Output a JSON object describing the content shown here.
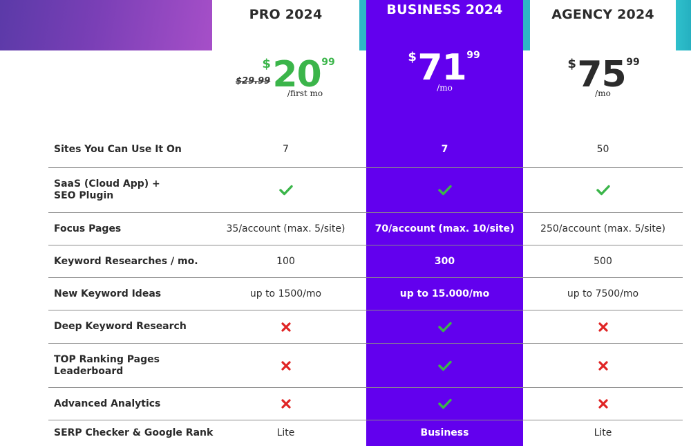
{
  "plans": {
    "pro": {
      "title": "PRO 2024",
      "old_price": "$29.99",
      "currency": "$",
      "amount": "20",
      "cents": "99",
      "per": "/first mo"
    },
    "business": {
      "title": "BUSINESS 2024",
      "currency": "$",
      "amount": "71",
      "cents": "99",
      "per": "/mo"
    },
    "agency": {
      "title": "AGENCY 2024",
      "currency": "$",
      "amount": "75",
      "cents": "99",
      "per": "/mo"
    }
  },
  "rows": [
    {
      "label": "Sites You Can Use It On",
      "pro": "7",
      "business": "7",
      "agency": "50"
    },
    {
      "label": "SaaS (Cloud App) + SEO Plugin",
      "pro": "check",
      "business": "check",
      "agency": "check"
    },
    {
      "label": "Focus Pages",
      "pro": "35/account (max. 5/site)",
      "business": "70/account (max. 10/site)",
      "agency": "250/account (max. 5/site)"
    },
    {
      "label": "Keyword Researches / mo.",
      "pro": "100",
      "business": "300",
      "agency": "500"
    },
    {
      "label": "New Keyword Ideas",
      "pro": "up to 1500/mo",
      "business": "up to 15.000/mo",
      "agency": "up to 7500/mo"
    },
    {
      "label": "Deep Keyword Research",
      "pro": "cross",
      "business": "check",
      "agency": "cross"
    },
    {
      "label": "TOP Ranking Pages Leaderboard",
      "pro": "cross",
      "business": "check",
      "agency": "cross"
    },
    {
      "label": "Advanced Analytics",
      "pro": "cross",
      "business": "check",
      "agency": "cross"
    },
    {
      "label": "SERP Checker & Google Rank",
      "pro": "Lite",
      "business": "Business",
      "agency": "Lite"
    }
  ],
  "colors": {
    "business_bg": "#6200ee",
    "check": "#3bb54a",
    "cross": "#e02424",
    "pro_price": "#3bb54a"
  },
  "icons": {
    "check": "check-icon",
    "cross": "cross-icon"
  }
}
